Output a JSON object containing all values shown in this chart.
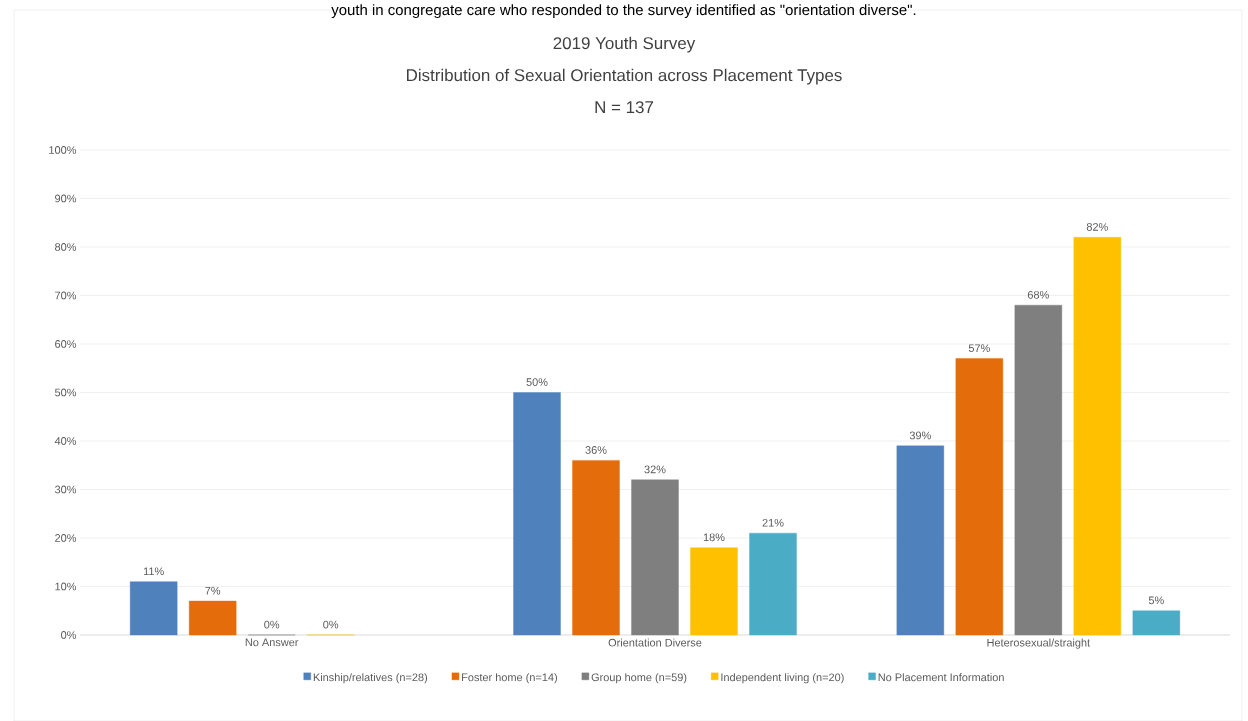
{
  "chart_data": {
    "type": "bar",
    "title": "2019 Youth Survey",
    "subtitle": "Distribution of Sexual Orientation across Placement Types",
    "annotations": [
      "youth in congregate care who responded to the survey identified as \"orientation diverse\".",
      "N = 137"
    ],
    "categories": [
      "No Answer",
      "Orientation Diverse",
      "Heterosexual/straight"
    ],
    "series": [
      {
        "name": "Kinship/relatives (n=28)",
        "color": "#4f81bd",
        "values": [
          11,
          50,
          39
        ],
        "value_labels": [
          "11%",
          "50%",
          "39%"
        ]
      },
      {
        "name": "Foster home (n=14)",
        "color": "#e46c0a",
        "values": [
          7,
          36,
          57
        ],
        "value_labels": [
          "7%",
          "36%",
          "57%"
        ]
      },
      {
        "name": "Group home (n=59)",
        "color": "#7f7f7f",
        "values": [
          0,
          32,
          68
        ],
        "value_labels": [
          "0%",
          "32%",
          "68%"
        ]
      },
      {
        "name": "Independent living (n=20)",
        "color": "#ffc000",
        "values": [
          0,
          18,
          82
        ],
        "value_labels": [
          "0%",
          "18%",
          "82%"
        ]
      },
      {
        "name": "No Placement Information",
        "color": "#4bacc6",
        "values": [
          null,
          21,
          5
        ],
        "value_labels": [
          null,
          "21%",
          "5%"
        ]
      }
    ],
    "ylim": [
      0,
      100
    ],
    "yticks": [
      {
        "value": 0,
        "label": "0%"
      },
      {
        "value": 10,
        "label": "10%"
      },
      {
        "value": 20,
        "label": "20%"
      },
      {
        "value": 30,
        "label": "30%"
      },
      {
        "value": 40,
        "label": "40%"
      },
      {
        "value": 50,
        "label": "50%"
      },
      {
        "value": 60,
        "label": "60%"
      },
      {
        "value": 70,
        "label": "70%"
      },
      {
        "value": 80,
        "label": "80%"
      },
      {
        "value": 90,
        "label": "90%"
      },
      {
        "value": 100,
        "label": "100%"
      }
    ],
    "grid": "y",
    "legend": "bottom"
  }
}
